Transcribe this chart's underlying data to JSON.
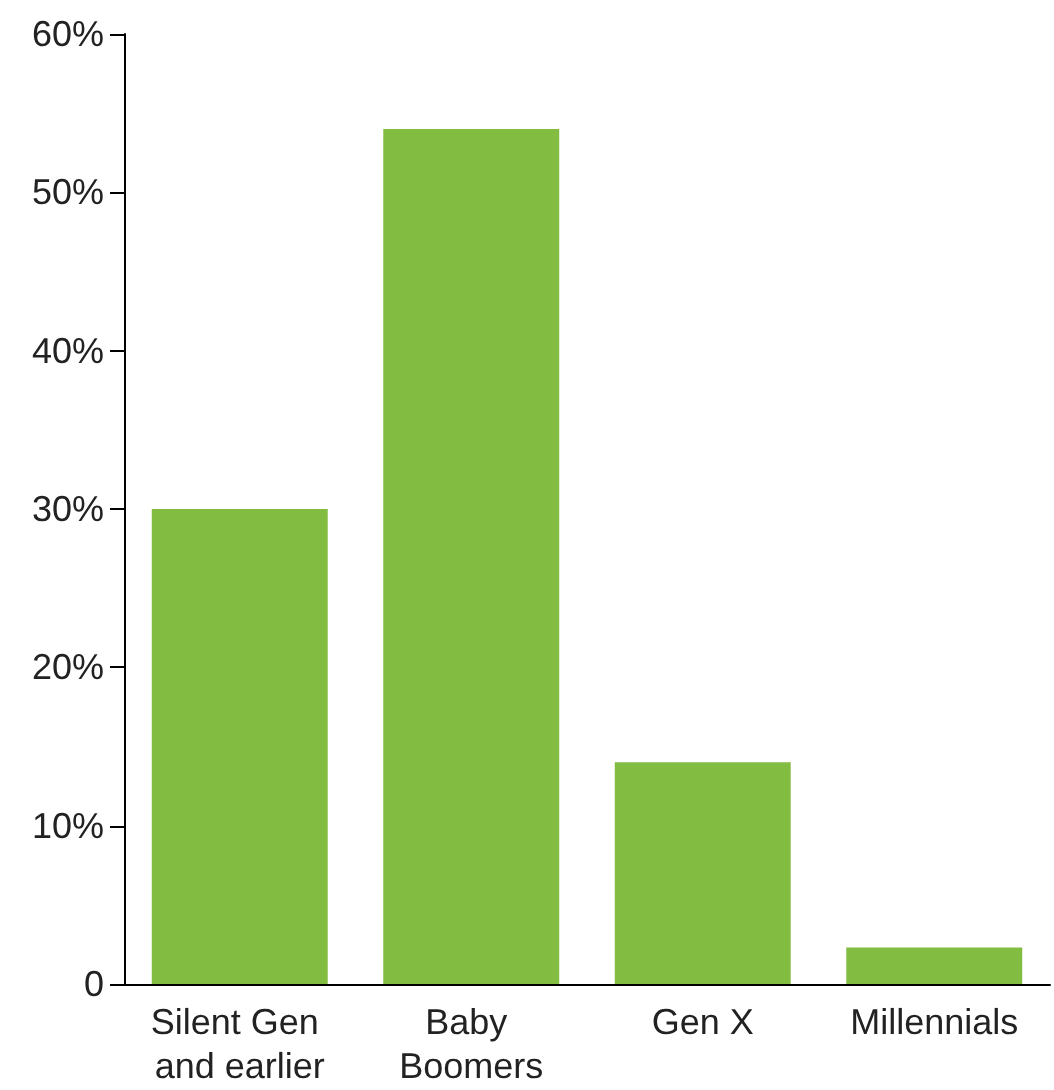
{
  "chart_data": {
    "type": "bar",
    "categories": [
      "Silent Gen and earlier",
      "Baby Boomers",
      "Gen X",
      "Millennials"
    ],
    "values": [
      30,
      54,
      14,
      2.3
    ],
    "color": "#82bc41",
    "ylim": [
      0,
      60
    ],
    "yticks": [
      0,
      {
        "value": 10,
        "label": "10%"
      },
      {
        "value": 20,
        "label": "20%"
      },
      {
        "value": 30,
        "label": "30%"
      },
      {
        "value": 40,
        "label": "40%"
      },
      {
        "value": 50,
        "label": "50%"
      },
      {
        "value": 60,
        "label": "60%"
      }
    ],
    "grid": false
  }
}
